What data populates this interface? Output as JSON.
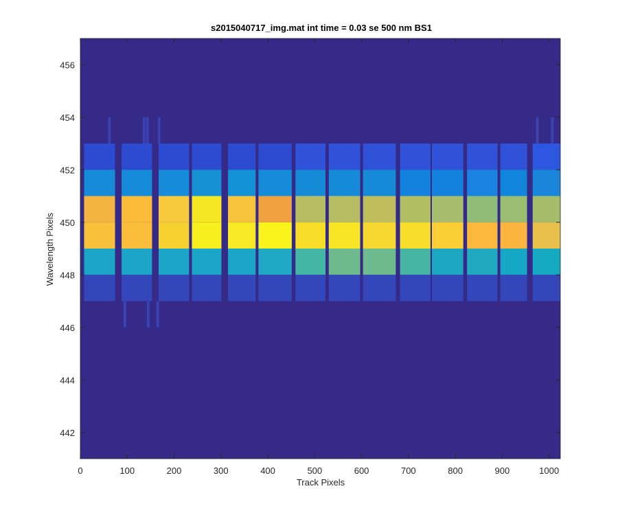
{
  "chart_data": {
    "type": "heatmap",
    "title": "s2015040717_img.mat int time = 0.03 se  500 nm BS1",
    "xlabel": "Track Pixels",
    "ylabel": "Wavelength Pixels",
    "xlim": [
      0,
      1024
    ],
    "ylim": [
      441,
      457
    ],
    "x_ticks": [
      0,
      100,
      200,
      300,
      400,
      500,
      600,
      700,
      800,
      900,
      1000
    ],
    "y_ticks": [
      442,
      444,
      446,
      448,
      450,
      452,
      454,
      456
    ],
    "colormap": "parula",
    "background_color": "#352a87",
    "column_segments": [
      {
        "x0": 8,
        "x1": 74
      },
      {
        "x0": 88,
        "x1": 153
      },
      {
        "x0": 167,
        "x1": 232
      },
      {
        "x0": 238,
        "x1": 301
      },
      {
        "x0": 315,
        "x1": 374
      },
      {
        "x0": 380,
        "x1": 451
      },
      {
        "x0": 459,
        "x1": 523
      },
      {
        "x0": 530,
        "x1": 597
      },
      {
        "x0": 603,
        "x1": 673
      },
      {
        "x0": 682,
        "x1": 747
      },
      {
        "x0": 750,
        "x1": 817
      },
      {
        "x0": 825,
        "x1": 890
      },
      {
        "x0": 896,
        "x1": 953
      },
      {
        "x0": 965,
        "x1": 1024
      }
    ],
    "band_rows": [
      {
        "y": 452.5,
        "colors": [
          "#2c4bd0",
          "#2c4bd0",
          "#2c4bd0",
          "#2c4bd0",
          "#2c4bd0",
          "#2c4bd0",
          "#2f52d8",
          "#2f52d8",
          "#2f52d8",
          "#2f52d8",
          "#2f52d8",
          "#2f52d8",
          "#2f52d8",
          "#2e57e0"
        ]
      },
      {
        "y": 451.5,
        "colors": [
          "#168bd8",
          "#168bd8",
          "#168bd8",
          "#1691d4",
          "#1391d6",
          "#168bd8",
          "#168ad6",
          "#168ad6",
          "#168ad6",
          "#1382dc",
          "#1382dc",
          "#1a83e0",
          "#1285dc",
          "#1a86da"
        ]
      },
      {
        "y": 450.5,
        "colors": [
          "#f2b640",
          "#fbbc3a",
          "#f8c93a",
          "#f7e622",
          "#f7c33d",
          "#f2a140",
          "#b7bd62",
          "#b7bd62",
          "#c0bd5c",
          "#b3bd62",
          "#a6bd6e",
          "#8fbd78",
          "#9bbd72",
          "#a3bd6a"
        ]
      },
      {
        "y": 449.5,
        "colors": [
          "#f8c13a",
          "#fbbe3a",
          "#f6d130",
          "#f8ef1e",
          "#f8e924",
          "#f8f41c",
          "#f7df29",
          "#f8e526",
          "#f7d830",
          "#f7de2b",
          "#fcce36",
          "#fbb83c",
          "#fbb43e",
          "#e9c04c"
        ]
      },
      {
        "y": 448.5,
        "colors": [
          "#1ba5c6",
          "#1ba5c6",
          "#1ba5c6",
          "#1ba5c6",
          "#1ba5c6",
          "#1ea8c3",
          "#44b6a5",
          "#6fba8c",
          "#6cba8e",
          "#45b4a2",
          "#1ca8c2",
          "#20a9c1",
          "#15a7c4",
          "#16a9c2"
        ]
      },
      {
        "y": 447.5,
        "colors": [
          "#3347ba",
          "#3347ba",
          "#3347ba",
          "#3347ba",
          "#3347ba",
          "#3347ba",
          "#3347ba",
          "#3347ba",
          "#3347ba",
          "#3347ba",
          "#3347ba",
          "#3347ba",
          "#3347ba",
          "#3347ba"
        ]
      }
    ],
    "sparse_lines": [
      {
        "x": 62,
        "y0": 453,
        "y1": 454
      },
      {
        "x": 136,
        "y0": 453,
        "y1": 454
      },
      {
        "x": 143,
        "y0": 453,
        "y1": 454
      },
      {
        "x": 168,
        "y0": 453,
        "y1": 454
      },
      {
        "x": 975,
        "y0": 453,
        "y1": 454
      },
      {
        "x": 1007,
        "y0": 453,
        "y1": 454
      },
      {
        "x": 95,
        "y0": 446,
        "y1": 447
      },
      {
        "x": 145,
        "y0": 446,
        "y1": 447
      },
      {
        "x": 165,
        "y0": 446,
        "y1": 447
      }
    ]
  }
}
